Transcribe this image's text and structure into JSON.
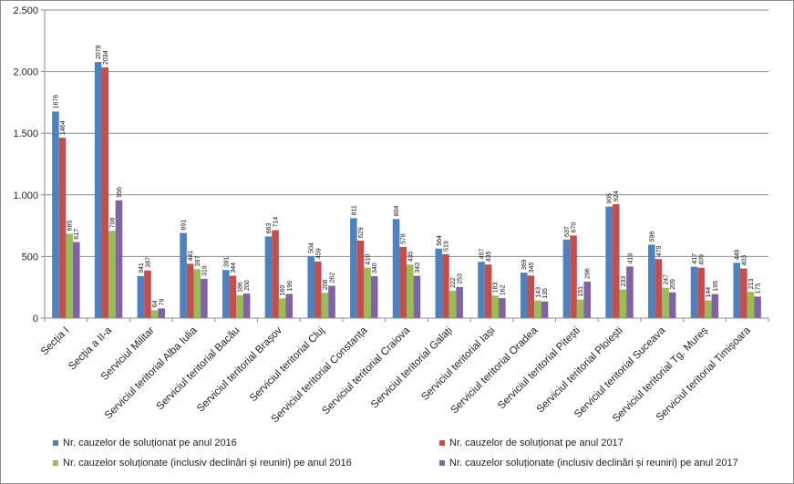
{
  "chart_data": {
    "type": "bar",
    "title": "",
    "xlabel": "",
    "ylabel": "",
    "ylim": [
      0,
      2500
    ],
    "y_ticks": [
      0,
      500,
      1000,
      1500,
      2000,
      2500
    ],
    "y_tick_labels": [
      "0",
      "500",
      "1.000",
      "1.500",
      "2.000",
      "2.500"
    ],
    "grid": true,
    "legend_position": "bottom",
    "categories": [
      "Secția I",
      "Secția a II-a",
      "Serviciul Militar",
      "Serviciul teritorial Alba Iulia",
      "Serviciul teritorial Bacău",
      "Serviciul teritorial Brașov",
      "Serviciul teritorial Cluj",
      "Serviciul teritorial Constanța",
      "Serviciul teritorial Craiova",
      "Serviciul teritorial Galați",
      "Serviciul teritorial Iași",
      "Serviciul teritorial Oradea",
      "Serviciul teritorial Pitești",
      "Serviciul teritorial Ploiești",
      "Serviciul teritorial Suceava",
      "Serviciul teritorial Tg. Mureș",
      "Serviciul teritorial Timișoara"
    ],
    "series": [
      {
        "name": "Nr. cauzelor de soluționat pe anul 2016",
        "color": "#4f81bd",
        "values": [
          1676,
          2078,
          341,
          691,
          391,
          663,
          504,
          811,
          804,
          564,
          457,
          369,
          637,
          905,
          596,
          417,
          449
        ]
      },
      {
        "name": "Nr. cauzelor de soluționat pe anul 2017",
        "color": "#c0504d",
        "values": [
          1464,
          2034,
          387,
          441,
          344,
          714,
          459,
          629,
          578,
          519,
          435,
          345,
          670,
          924,
          479,
          409,
          403
        ]
      },
      {
        "name": "Nr. cauzelor soluționate (inclusiv declinări și reuniri) pe anul 2016",
        "color": "#9bbb59",
        "values": [
          685,
          708,
          64,
          397,
          186,
          160,
          206,
          410,
          435,
          222,
          183,
          143,
          151,
          233,
          247,
          144,
          213
        ]
      },
      {
        "name": "Nr. cauzelor soluționate (inclusiv declinări și reuniri) pe anul 2017",
        "color": "#8064a2",
        "values": [
          617,
          956,
          79,
          319,
          200,
          196,
          262,
          340,
          343,
          253,
          162,
          135,
          296,
          419,
          209,
          195,
          175
        ]
      }
    ]
  }
}
